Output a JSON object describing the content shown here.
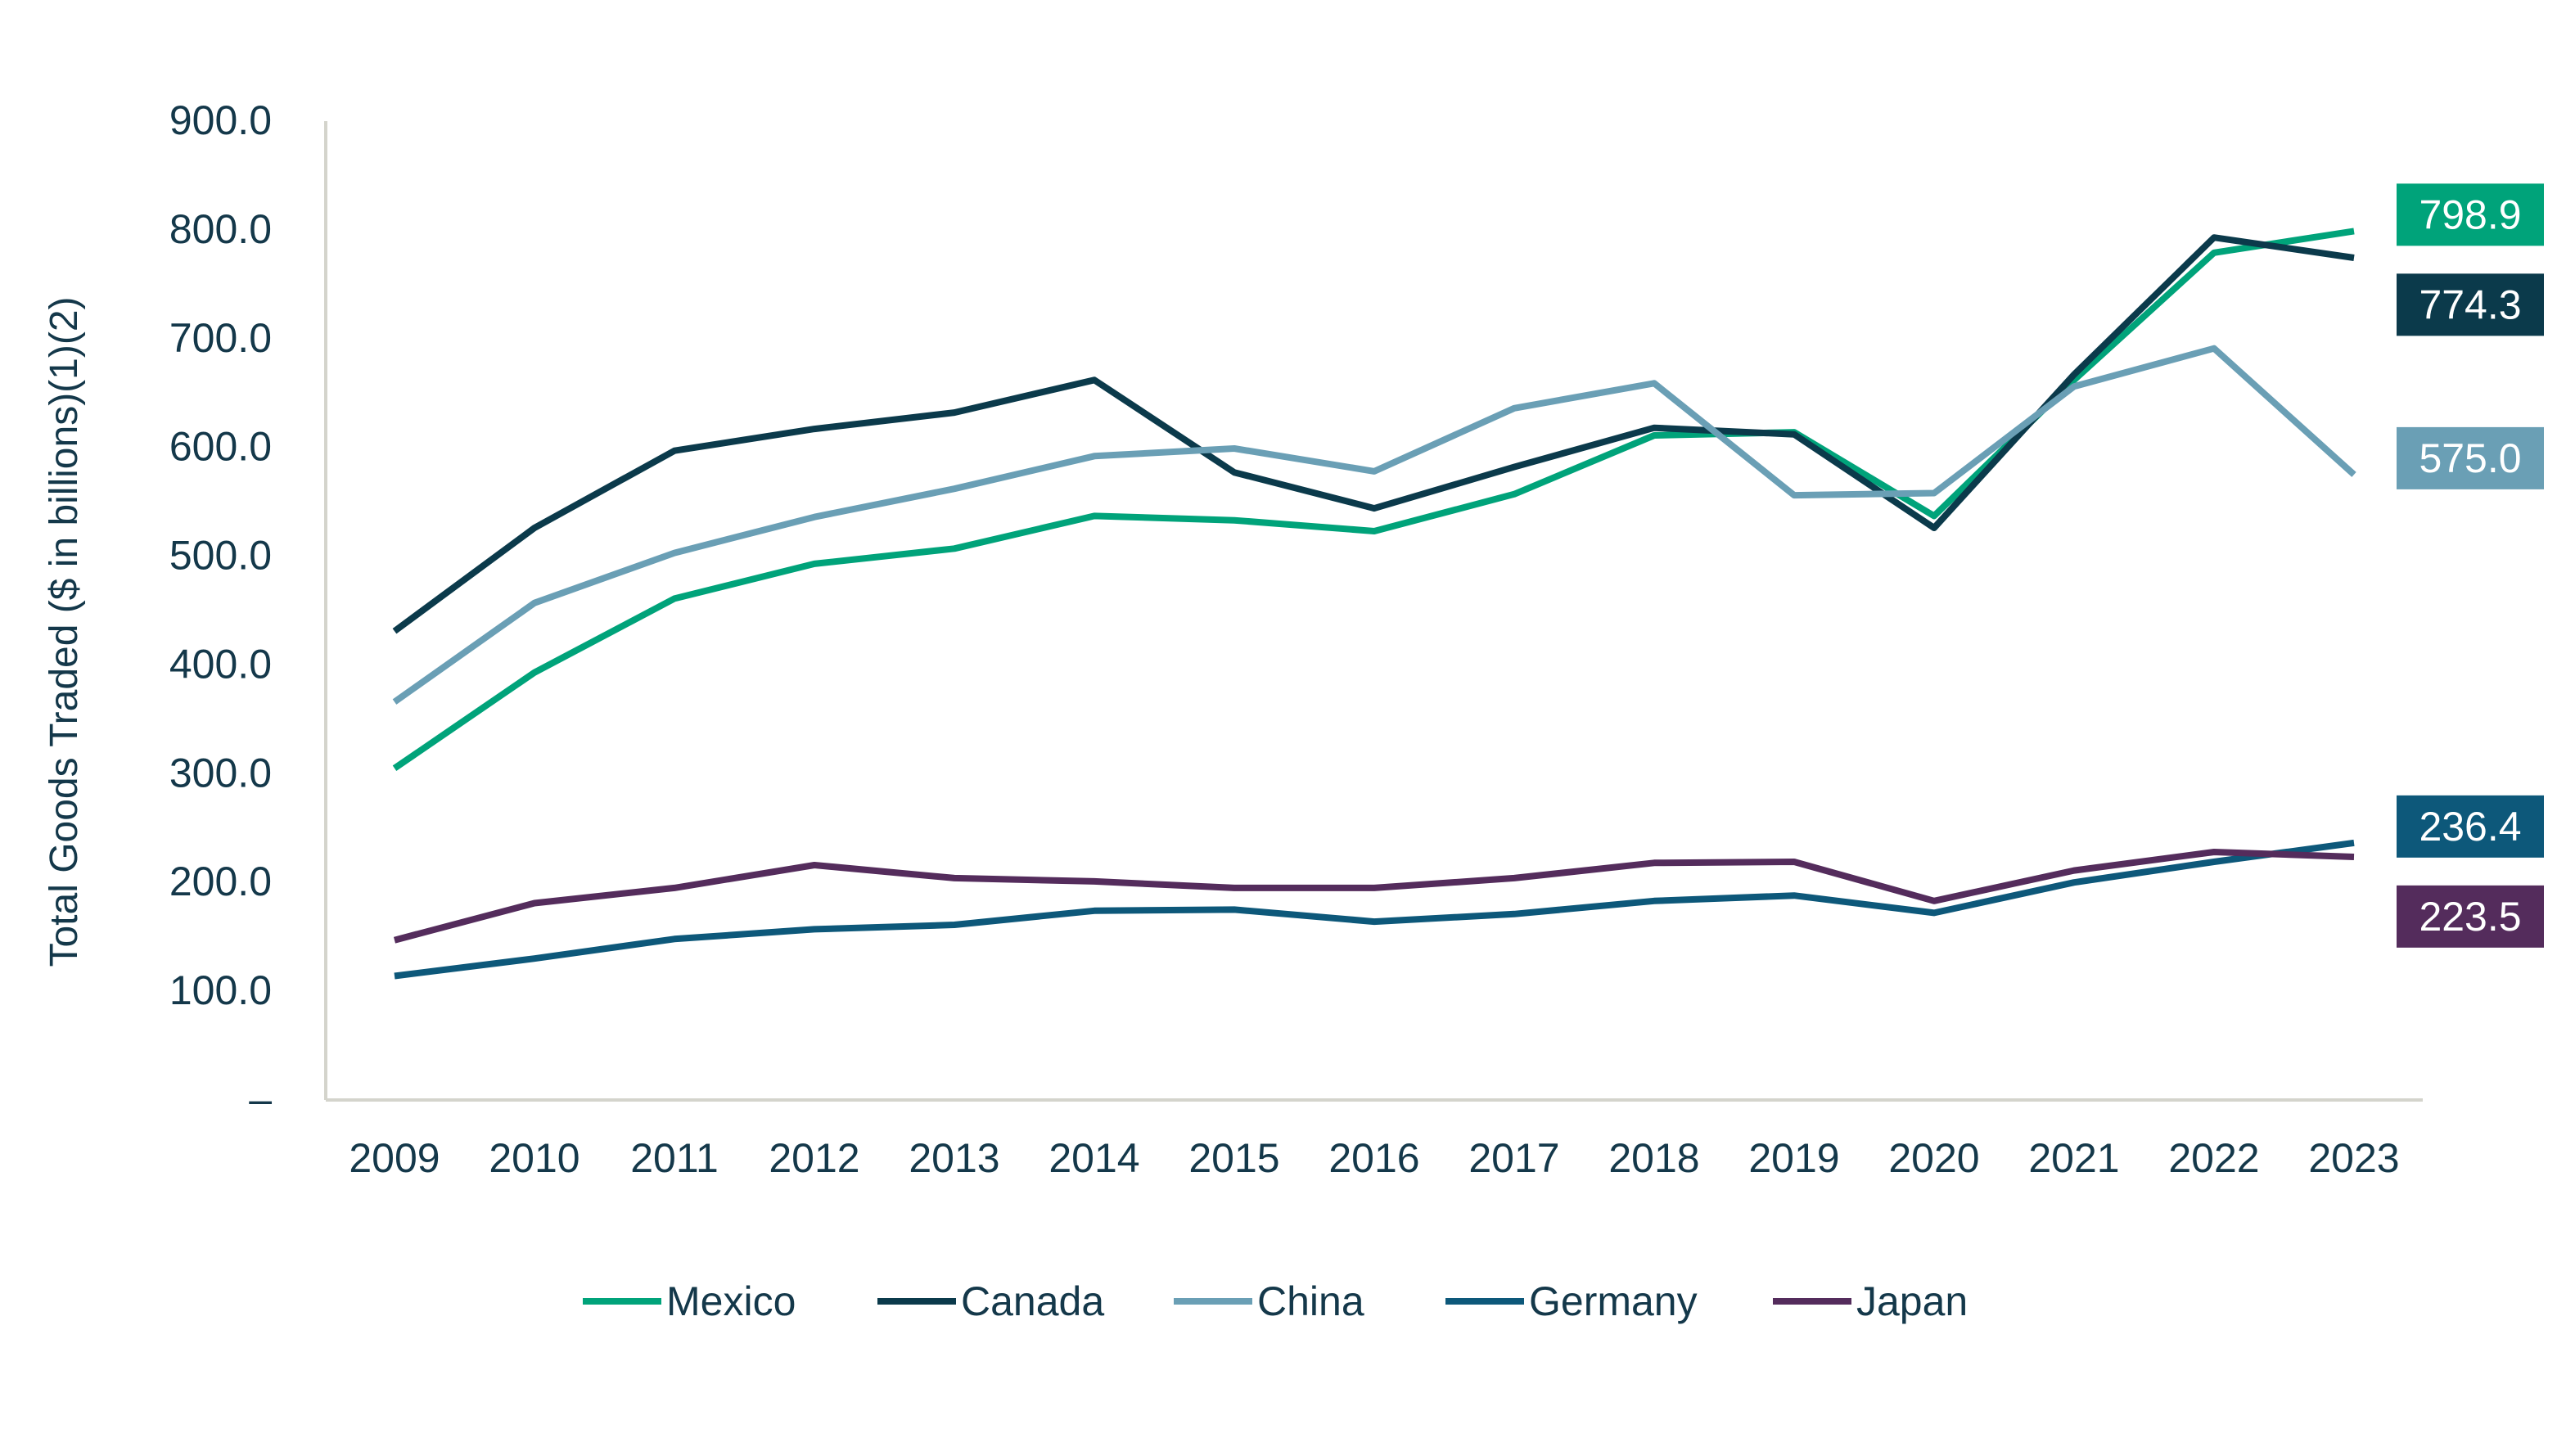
{
  "chart_data": {
    "type": "line",
    "title": "",
    "xlabel": "",
    "ylabel": "Total Goods Traded ($ in billions)(1)(2)",
    "ylim": [
      0,
      900
    ],
    "yticks": [
      {
        "value": 0,
        "label": "–"
      },
      {
        "value": 100,
        "label": "100.0"
      },
      {
        "value": 200,
        "label": "200.0"
      },
      {
        "value": 300,
        "label": "300.0"
      },
      {
        "value": 400,
        "label": "400.0"
      },
      {
        "value": 500,
        "label": "500.0"
      },
      {
        "value": 600,
        "label": "600.0"
      },
      {
        "value": 700,
        "label": "700.0"
      },
      {
        "value": 800,
        "label": "800.0"
      },
      {
        "value": 900,
        "label": "900.0"
      }
    ],
    "categories": [
      "2009",
      "2010",
      "2011",
      "2012",
      "2013",
      "2014",
      "2015",
      "2016",
      "2017",
      "2018",
      "2019",
      "2020",
      "2021",
      "2022",
      "2023"
    ],
    "grid": false,
    "legend_position": "bottom",
    "series": [
      {
        "name": "Mexico",
        "color": "#00a37a",
        "end_label": "798.9",
        "values": [
          305,
          393,
          461,
          493,
          507,
          537,
          533,
          523,
          557,
          611,
          614,
          537,
          662,
          779,
          798.9
        ]
      },
      {
        "name": "Canada",
        "color": "#0b3a4b",
        "end_label": "774.3",
        "values": [
          431,
          526,
          597,
          617,
          632,
          662,
          577,
          544,
          582,
          618,
          612,
          526,
          667,
          793,
          774.3
        ]
      },
      {
        "name": "China",
        "color": "#6a9fb5",
        "end_label": "575.0",
        "values": [
          366,
          457,
          503,
          536,
          562,
          592,
          599,
          578,
          636,
          659,
          556,
          558,
          656,
          691,
          575.0
        ]
      },
      {
        "name": "Germany",
        "color": "#0d587a",
        "end_label": "236.4",
        "values": [
          114,
          130,
          148,
          157,
          161,
          174,
          175,
          164,
          171,
          183,
          188,
          172,
          200,
          219,
          236.4
        ]
      },
      {
        "name": "Japan",
        "color": "#542c5c",
        "end_label": "223.5",
        "values": [
          147,
          181,
          195,
          216,
          204,
          201,
          195,
          195,
          204,
          218,
          219,
          183,
          211,
          228,
          223.5
        ]
      }
    ]
  }
}
